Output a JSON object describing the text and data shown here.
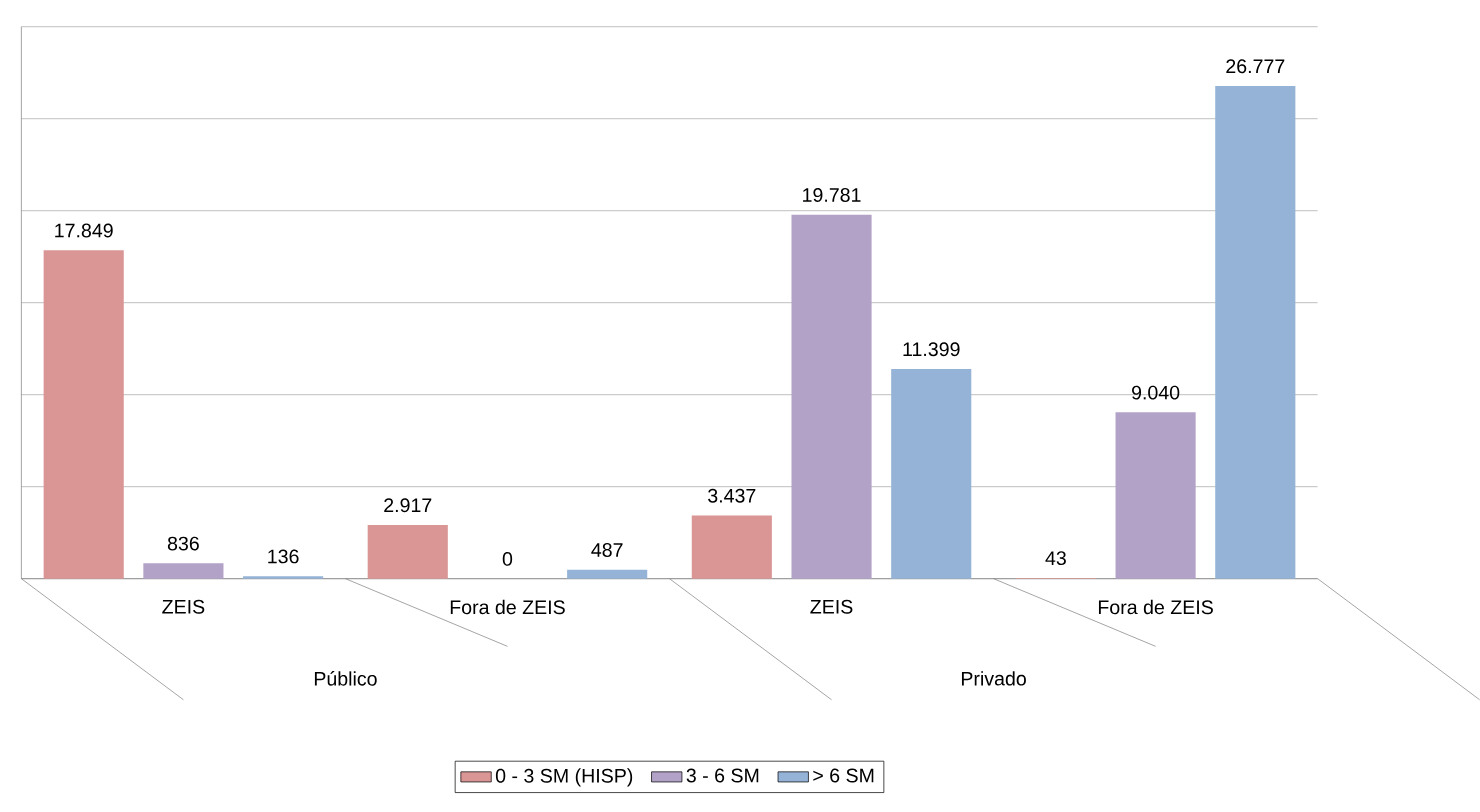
{
  "chart_data": {
    "type": "bar",
    "categories": [
      "ZEIS",
      "Fora de ZEIS",
      "ZEIS",
      "Fora de ZEIS"
    ],
    "series": [
      {
        "name": "0 - 3 SM (HISP)",
        "color": "#d99694",
        "values": [
          17849,
          2917,
          3437,
          43
        ],
        "value_labels": [
          "17.849",
          "2.917",
          "3.437",
          "43"
        ]
      },
      {
        "name": "3 - 6 SM",
        "color": "#b3a2c7",
        "values": [
          836,
          0,
          19781,
          9040
        ],
        "value_labels": [
          "836",
          "0",
          "19.781",
          "9.040"
        ]
      },
      {
        "name": "> 6 SM",
        "color": "#95b3d7",
        "values": [
          136,
          487,
          11399,
          26777
        ],
        "value_labels": [
          "136",
          "487",
          "11.399",
          "26.777"
        ]
      }
    ],
    "annotations": [
      "Público",
      "Privado"
    ],
    "ylim": [
      0,
      30000
    ],
    "yticks": [
      {
        "value": 0,
        "label": null
      },
      {
        "value": 5000,
        "label": null
      },
      {
        "value": 10000,
        "label": null
      },
      {
        "value": 15000,
        "label": null
      },
      {
        "value": 20000,
        "label": null
      },
      {
        "value": 25000,
        "label": null
      },
      {
        "value": 30000,
        "label": null
      }
    ],
    "grid": "y",
    "legend": "bottom",
    "tick_labels": "x"
  }
}
